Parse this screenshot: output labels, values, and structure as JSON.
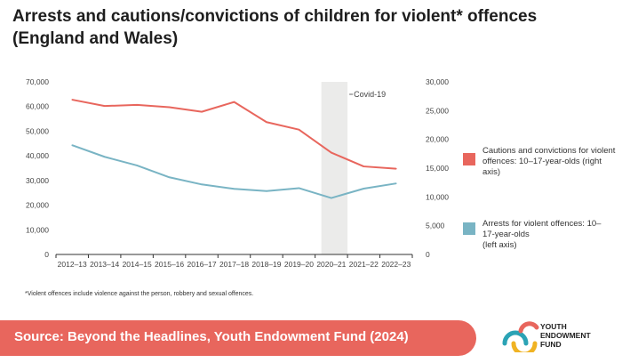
{
  "title": "Arrests and cautions/convictions of children for violent* offences (England and Wales)",
  "chart_data": {
    "type": "line",
    "categories": [
      "2012–13",
      "2013–14",
      "2014–15",
      "2015–16",
      "2016–17",
      "2017–18",
      "2018–19",
      "2019–20",
      "2020–21",
      "2021–22",
      "2022–23"
    ],
    "left_axis": {
      "ticks": [
        "0",
        "10,000",
        "20,000",
        "30,000",
        "40,000",
        "50,000",
        "60,000",
        "70,000"
      ],
      "ylim": [
        0,
        70000
      ]
    },
    "right_axis": {
      "ticks": [
        "0",
        "5,000",
        "10,000",
        "15,000",
        "20,000",
        "25,000",
        "30,000"
      ],
      "ylim": [
        0,
        30000
      ]
    },
    "series": [
      {
        "axis": "right",
        "color": "#e8665d",
        "values": [
          26900,
          25800,
          26000,
          25600,
          24800,
          26500,
          23000,
          21700,
          17700,
          15300,
          14900
        ]
      },
      {
        "axis": "left",
        "color": "#79b4c4",
        "values": [
          44300,
          39600,
          36100,
          31300,
          28400,
          26600,
          25700,
          26900,
          22900,
          26700,
          28800
        ]
      }
    ],
    "highlight": {
      "category": "2020–21",
      "label": "Covid-19"
    },
    "grid": false
  },
  "legend": [
    {
      "label": "Cautions and convictions for violent offences: 10–17-year-olds (right axis)",
      "color": "#e8665d"
    },
    {
      "label": "Arrests for violent offences: 10–\n17-year-olds\n(left axis)",
      "color": "#79b4c4"
    }
  ],
  "footnote": "*Violent offences include violence against the person, robbery and sexual offences.",
  "source": "Source: Beyond the Headlines, Youth Endowment Fund (2024)",
  "logo": {
    "line1": "YOUTH",
    "line2": "ENDOWMENT",
    "line3": "FUND"
  },
  "colors": {
    "accent": "#e8665d",
    "teal": "#79b4c4",
    "covid_band": "#ebebea"
  }
}
